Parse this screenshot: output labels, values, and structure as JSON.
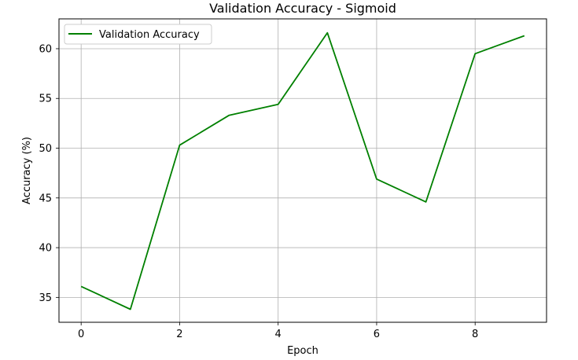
{
  "chart_data": {
    "type": "line",
    "title": "Validation Accuracy - Sigmoid",
    "xlabel": "Epoch",
    "ylabel": "Accuracy (%)",
    "x": [
      0,
      1,
      2,
      3,
      4,
      5,
      6,
      7,
      8,
      9
    ],
    "series": [
      {
        "name": "Validation Accuracy",
        "color": "#008000",
        "values": [
          36.1,
          33.8,
          50.3,
          53.3,
          54.4,
          61.6,
          46.9,
          44.6,
          59.5,
          61.3
        ]
      }
    ],
    "xlim": [
      -0.45,
      9.45
    ],
    "ylim": [
      32.5,
      63.0
    ],
    "xticks": [
      0,
      2,
      4,
      6,
      8
    ],
    "yticks": [
      35,
      40,
      45,
      50,
      55,
      60
    ],
    "grid": true,
    "legend_position": "upper-left"
  }
}
